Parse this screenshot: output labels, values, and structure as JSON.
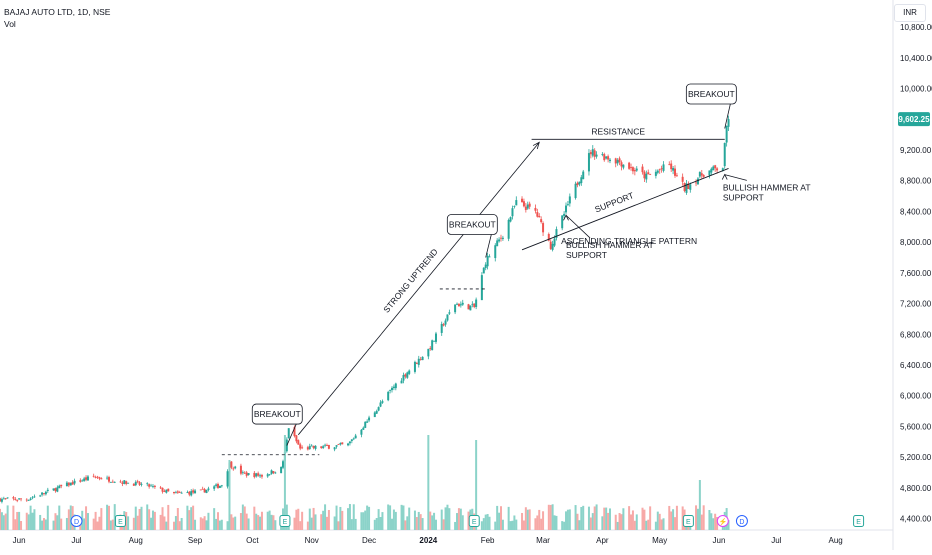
{
  "header": {
    "symbol_line": "BAJAJ AUTO LTD, 1D, NSE",
    "volume_label": "Vol",
    "currency": "INR"
  },
  "colors": {
    "up": "#26a69a",
    "down": "#ef5350",
    "up_volume": "#8bd3c9",
    "down_volume": "#f7a9a7",
    "last_price_badge": "#26a69a",
    "event_dividend": "#2962ff",
    "event_earnings": "#26a69a",
    "event_split": "#e040fb"
  },
  "chart_data": {
    "type": "candlestick",
    "title": "BAJAJ AUTO LTD, 1D, NSE",
    "y_axis": {
      "position": "right",
      "min": 4250,
      "max": 11050,
      "ticks": [
        4400,
        4800,
        5200,
        5600,
        6000,
        6400,
        6800,
        7200,
        7600,
        8000,
        8400,
        8800,
        9200,
        10000,
        10400,
        10800
      ],
      "tick_labels": [
        "4,400.00",
        "4,800.00",
        "5,200.00",
        "5,600.00",
        "6,000.00",
        "6,400.00",
        "6,800.00",
        "7,200.00",
        "7,600.00",
        "8,000.00",
        "8,400.00",
        "8,800.00",
        "9,200.00",
        "10,000.00",
        "10,400.00",
        "10,800.00"
      ]
    },
    "last_price": 9602.25,
    "last_price_label": "9,602.25",
    "x_axis": {
      "start": "2023-05-22",
      "end": "2024-08-31",
      "ticks": [
        {
          "date": "2023-06-01",
          "label": "Jun"
        },
        {
          "date": "2023-07-01",
          "label": "Jul"
        },
        {
          "date": "2023-08-01",
          "label": "Aug"
        },
        {
          "date": "2023-09-01",
          "label": "Sep"
        },
        {
          "date": "2023-10-01",
          "label": "Oct"
        },
        {
          "date": "2023-11-01",
          "label": "Nov"
        },
        {
          "date": "2023-12-01",
          "label": "Dec"
        },
        {
          "date": "2024-01-01",
          "label": "2024"
        },
        {
          "date": "2024-02-01",
          "label": "Feb"
        },
        {
          "date": "2024-03-01",
          "label": "Mar"
        },
        {
          "date": "2024-04-01",
          "label": "Apr"
        },
        {
          "date": "2024-05-01",
          "label": "May"
        },
        {
          "date": "2024-06-01",
          "label": "Jun"
        },
        {
          "date": "2024-07-01",
          "label": "Jul"
        },
        {
          "date": "2024-08-01",
          "label": "Aug"
        }
      ]
    },
    "price_path": [
      [
        "2023-05-22",
        4650
      ],
      [
        "2023-06-05",
        4650
      ],
      [
        "2023-06-26",
        4840
      ],
      [
        "2023-07-10",
        4945
      ],
      [
        "2023-07-24",
        4880
      ],
      [
        "2023-08-07",
        4830
      ],
      [
        "2023-08-21",
        4720
      ],
      [
        "2023-09-04",
        4750
      ],
      [
        "2023-09-15",
        4840
      ],
      [
        "2023-09-19",
        5110
      ],
      [
        "2023-09-26",
        4980
      ],
      [
        "2023-10-06",
        4960
      ],
      [
        "2023-10-16",
        5050
      ],
      [
        "2023-10-18",
        5250
      ],
      [
        "2023-10-20",
        5590
      ],
      [
        "2023-10-26",
        5310
      ],
      [
        "2023-11-06",
        5330
      ],
      [
        "2023-11-20",
        5360
      ],
      [
        "2023-12-01",
        5700
      ],
      [
        "2023-12-15",
        6150
      ],
      [
        "2024-01-01",
        6600
      ],
      [
        "2024-01-15",
        7200
      ],
      [
        "2024-01-25",
        7150
      ],
      [
        "2024-01-31",
        7750
      ],
      [
        "2024-02-09",
        8100
      ],
      [
        "2024-02-16",
        8520
      ],
      [
        "2024-02-26",
        8400
      ],
      [
        "2024-03-05",
        7950
      ],
      [
        "2024-03-15",
        8550
      ],
      [
        "2024-03-26",
        9180
      ],
      [
        "2024-04-10",
        9050
      ],
      [
        "2024-04-24",
        8850
      ],
      [
        "2024-05-06",
        9000
      ],
      [
        "2024-05-14",
        8700
      ],
      [
        "2024-05-24",
        8900
      ],
      [
        "2024-06-03",
        8980
      ],
      [
        "2024-06-05",
        9500
      ],
      [
        "2024-06-06",
        9600
      ]
    ],
    "volume_spikes": [
      {
        "date": "2023-09-19",
        "relative": 0.7
      },
      {
        "date": "2023-10-18",
        "relative": 0.95
      },
      {
        "date": "2024-01-01",
        "relative": 0.95
      },
      {
        "date": "2024-01-26",
        "relative": 0.9
      },
      {
        "date": "2024-05-22",
        "relative": 0.5
      }
    ],
    "events": [
      {
        "date": "2023-07-01",
        "type": "dividend",
        "label": "D"
      },
      {
        "date": "2023-07-24",
        "type": "earnings",
        "label": "E"
      },
      {
        "date": "2023-10-18",
        "type": "earnings",
        "label": "E"
      },
      {
        "date": "2024-01-25",
        "type": "earnings",
        "label": "E"
      },
      {
        "date": "2024-05-16",
        "type": "earnings",
        "label": "E"
      },
      {
        "date": "2024-06-03",
        "type": "split",
        "label": "⚡"
      },
      {
        "date": "2024-06-13",
        "type": "dividend",
        "label": "D"
      },
      {
        "date": "2024-08-13",
        "type": "earnings",
        "label": "E"
      }
    ],
    "annotations": {
      "breakout_1": {
        "label": "BREAKOUT",
        "date": "2023-10-14",
        "value": 5760
      },
      "breakout_2": {
        "label": "BREAKOUT",
        "date": "2024-01-24",
        "value": 8230
      },
      "breakout_3": {
        "label": "BREAKOUT",
        "date": "2024-05-28",
        "value": 9930
      },
      "strong_uptrend": {
        "label": "STRONG UPTREND",
        "from": [
          "2023-10-25",
          5490
        ],
        "to": [
          "2024-02-28",
          9300
        ]
      },
      "resistance": {
        "label": "RESISTANCE",
        "value": 9340,
        "from": "2024-02-24",
        "to": "2024-06-04"
      },
      "support": {
        "label": "SUPPORT",
        "from": [
          "2024-02-19",
          7900
        ],
        "to": [
          "2024-06-06",
          8960
        ]
      },
      "level_1": {
        "value": 5230,
        "from": "2023-09-15",
        "to": "2023-11-05"
      },
      "level_2": {
        "value": 7390,
        "from": "2024-01-07",
        "to": "2024-02-01"
      },
      "hammer_1": {
        "label_line1": "BULLISH HAMMER AT",
        "label_line2": "SUPPORT",
        "date": "2024-03-13",
        "value": 7950
      },
      "hammer_2": {
        "label_line1": "BULLISH HAMMER AT",
        "label_line2": "SUPPORT",
        "date": "2024-06-03",
        "value": 8700
      },
      "pattern": {
        "label": "ASCENDING TRIANGLE PATTERN",
        "date": "2024-04-15",
        "value": 7975
      }
    }
  }
}
